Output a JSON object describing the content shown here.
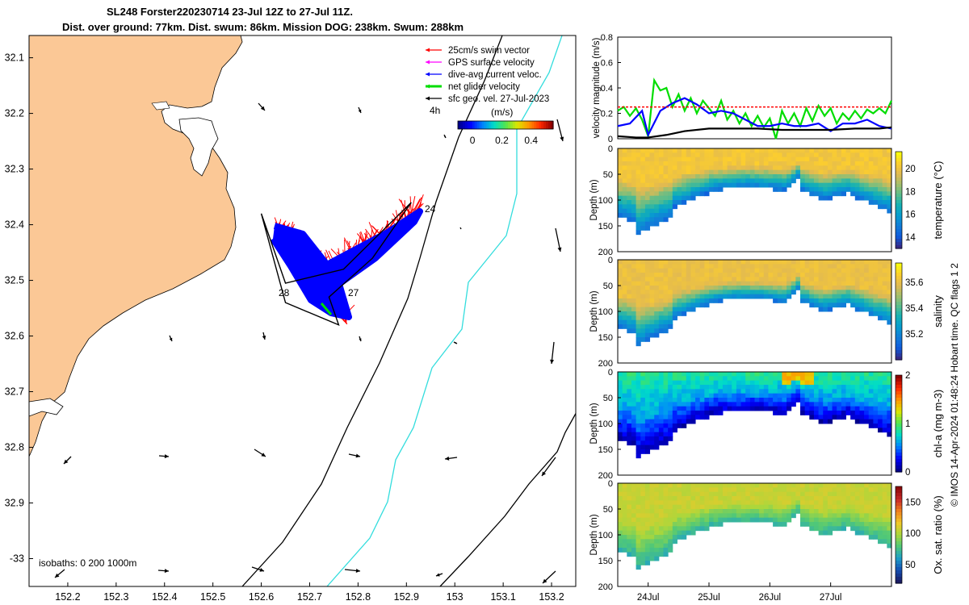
{
  "title": {
    "line1": "SL248 Forster220230714 23-Jul 12Z to 27-Jul 11Z.",
    "line2": "Dist. over ground: 77km. Dist. swum: 86km. Mission DOG: 238km. Swum: 288km"
  },
  "colors": {
    "land": "#fbc896",
    "track_blue": "#0000ff",
    "swim_red": "#ff0000",
    "net_green": "#00dd00",
    "gps_magenta": "#ff00ff",
    "contour_cyan": "#33dddd"
  },
  "chart_data": [
    {
      "type": "map",
      "x_ticks": [
        "152.2",
        "152.3",
        "152.4",
        "152.5",
        "152.6",
        "152.7",
        "152.8",
        "152.9",
        "153",
        "153.1",
        "153.2"
      ],
      "y_ticks": [
        "32.1",
        "32.2",
        "32.3",
        "32.4",
        "32.5",
        "32.6",
        "32.7",
        "32.8",
        "32.9",
        "-33"
      ],
      "xlim": [
        152.12,
        153.25
      ],
      "ylim": [
        -33.05,
        -32.06
      ],
      "legend": [
        {
          "label": "25cm/s swim vector",
          "color": "#ff0000"
        },
        {
          "label": "GPS surface velocity",
          "color": "#ff00ff"
        },
        {
          "label": "dive-avg current veloc.",
          "color": "#0000ff"
        },
        {
          "label": "net glider velocity",
          "color": "#00dd00"
        },
        {
          "label": "sfc geo. vel. 27-Jul-2023",
          "color": "#000000"
        }
      ],
      "colorbar_unit": "(m/s)",
      "colorbar_ticks": [
        "0",
        "0.2",
        "0.4"
      ],
      "colorbar_range": [
        -0.1,
        0.55
      ],
      "time_label": "4h",
      "day_labels": [
        "24",
        "28",
        "27"
      ],
      "isobaths_label": "isobaths: 0   200  1000m",
      "track": [
        [
          152.6,
          -32.38
        ],
        [
          152.65,
          -32.54
        ],
        [
          152.76,
          -32.58
        ],
        [
          152.74,
          -32.53
        ],
        [
          152.83,
          -32.46
        ],
        [
          152.91,
          -32.36
        ],
        [
          152.77,
          -32.48
        ],
        [
          152.65,
          -32.505
        ],
        [
          152.6,
          -32.38
        ]
      ]
    },
    {
      "type": "line",
      "ylabel": "velocity magnitude (m/s)",
      "y_ticks": [
        "0",
        "0.2",
        "0.4",
        "0.6",
        "0.8"
      ],
      "ylim": [
        0,
        0.8
      ],
      "xlim": [
        23.5,
        28.0
      ],
      "series": [
        {
          "color": "#00dd00",
          "x": [
            23.5,
            23.6,
            23.7,
            23.8,
            23.9,
            24.0,
            24.1,
            24.2,
            24.3,
            24.4,
            24.5,
            24.6,
            24.7,
            24.8,
            24.9,
            25.0,
            25.1,
            25.2,
            25.3,
            25.4,
            25.5,
            25.6,
            25.7,
            25.8,
            25.9,
            26.0,
            26.1,
            26.2,
            26.3,
            26.4,
            26.5,
            26.6,
            26.7,
            26.8,
            26.9,
            27.0,
            27.1,
            27.2,
            27.3,
            27.4,
            27.5,
            27.6,
            27.7,
            27.8,
            27.9,
            28.0
          ],
          "y": [
            0.22,
            0.25,
            0.18,
            0.24,
            0.15,
            0.02,
            0.46,
            0.38,
            0.4,
            0.25,
            0.35,
            0.22,
            0.32,
            0.2,
            0.3,
            0.24,
            0.18,
            0.3,
            0.15,
            0.22,
            0.12,
            0.2,
            0.1,
            0.18,
            0.09,
            0.16,
            0.0,
            0.22,
            0.12,
            0.2,
            0.1,
            0.24,
            0.14,
            0.26,
            0.18,
            0.24,
            0.12,
            0.2,
            0.15,
            0.22,
            0.16,
            0.23,
            0.2,
            0.24,
            0.2,
            0.3
          ]
        },
        {
          "color": "#0000ff",
          "x": [
            23.5,
            23.7,
            23.9,
            24.0,
            24.2,
            24.4,
            24.6,
            24.8,
            25.0,
            25.2,
            25.4,
            25.6,
            25.8,
            26.0,
            26.2,
            26.4,
            26.6,
            26.8,
            27.0,
            27.2,
            27.4,
            27.6,
            27.8,
            28.0
          ],
          "y": [
            0.1,
            0.12,
            0.22,
            0.03,
            0.22,
            0.28,
            0.32,
            0.27,
            0.2,
            0.22,
            0.2,
            0.15,
            0.1,
            0.1,
            0.12,
            0.1,
            0.1,
            0.12,
            0.06,
            0.12,
            0.12,
            0.15,
            0.1,
            0.08
          ]
        },
        {
          "color": "#000000",
          "x": [
            23.5,
            23.8,
            24.0,
            24.3,
            24.6,
            25.0,
            25.4,
            25.8,
            26.2,
            26.6,
            27.0,
            27.4,
            27.8,
            28.0
          ],
          "y": [
            0.02,
            0.01,
            0.01,
            0.03,
            0.06,
            0.08,
            0.08,
            0.08,
            0.07,
            0.07,
            0.07,
            0.08,
            0.08,
            0.09
          ]
        },
        {
          "color": "#ff0000",
          "x": [
            23.5,
            28.0
          ],
          "y": [
            0.25,
            0.25
          ]
        }
      ]
    },
    {
      "type": "heatmap",
      "ylabel": "Depth (m)",
      "clabel": "temperature (°C)",
      "cticks": [
        "14",
        "16",
        "18",
        "20"
      ],
      "crange": [
        13,
        21.5
      ],
      "y_ticks": [
        "0",
        "50",
        "100",
        "150",
        "200"
      ]
    },
    {
      "type": "heatmap",
      "ylabel": "Depth (m)",
      "clabel": "salinity",
      "cticks": [
        "35.2",
        "35.4",
        "35.6"
      ],
      "crange": [
        35.0,
        35.75
      ],
      "y_ticks": [
        "0",
        "50",
        "100",
        "150",
        "200"
      ]
    },
    {
      "type": "heatmap",
      "ylabel": "Depth (m)",
      "clabel": "chl-a (mg m-3)",
      "cticks": [
        "0",
        "1",
        "2"
      ],
      "crange": [
        0,
        2
      ],
      "y_ticks": [
        "0",
        "50",
        "100",
        "150",
        "200"
      ]
    },
    {
      "type": "heatmap",
      "ylabel": "Depth (m)",
      "clabel": "Ox. sat. ratio (%)",
      "cticks": [
        "50",
        "100",
        "150"
      ],
      "crange": [
        20,
        175
      ],
      "y_ticks": [
        "0",
        "50",
        "100",
        "150",
        "200"
      ],
      "x_ticks": [
        "24Jul",
        "25Jul",
        "26Jul",
        "27Jul"
      ]
    }
  ],
  "side_note": "© IMOS 14-Apr-2024 01:48:24 Hobart time. QC flags 1  2"
}
